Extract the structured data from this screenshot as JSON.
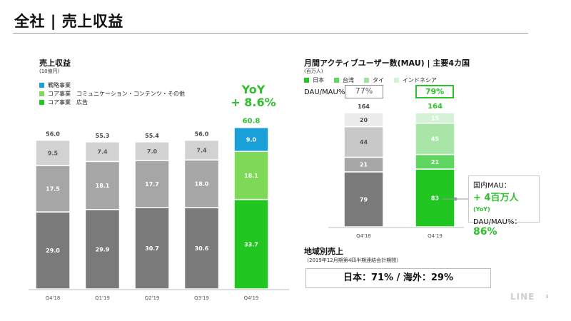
{
  "header": {
    "title": "全社 | 売上収益"
  },
  "left_chart": {
    "title": "売上収益",
    "unit": "(10億円)",
    "legend": [
      {
        "label": "戦略事業",
        "color": "#1aa0d8"
      },
      {
        "label": "コア事業　コミュニケーション・コンテンツ・その他",
        "color": "#7ed957"
      },
      {
        "label": "コア事業　広告",
        "color": "#21c621"
      }
    ],
    "yoy_line1": "YoY",
    "yoy_line2": "+ 8.6%"
  },
  "right_chart": {
    "title": "月間アクティブユーザー数(MAU) | 主要4カ国",
    "unit": "(百万人)",
    "legend": [
      {
        "label": "日本",
        "color": "#21c621"
      },
      {
        "label": "台湾",
        "color": "#5fd65f"
      },
      {
        "label": "タイ",
        "color": "#9fe39f"
      },
      {
        "label": "インドネシア",
        "color": "#d6f2d6"
      }
    ],
    "dau_label": "DAU/MAU%",
    "dau_values": [
      "77%",
      "79%"
    ],
    "callout": {
      "line1": "国内MAU：",
      "line2": "+ 4百万人",
      "line2_suffix": "(YoY)",
      "line3": "DAU/MAU%：",
      "line4": "86%"
    }
  },
  "region": {
    "title": "地域別売上",
    "subtitle": "（2019年12月期第4四半期連結会計期間）",
    "value": "日本：71% / 海外：29%"
  },
  "footer": {
    "logo": "LINE",
    "page": "3"
  },
  "chart_data": [
    {
      "type": "bar",
      "stacked": true,
      "title": "売上収益",
      "ylabel": "(10億円)",
      "categories": [
        "Q4'18",
        "Q1'19",
        "Q2'19",
        "Q3'19",
        "Q4'19"
      ],
      "totals": [
        "56.0",
        "55.3",
        "55.4",
        "56.0",
        "60.8"
      ],
      "series": [
        {
          "name": "コア事業　広告",
          "values": [
            29.0,
            29.9,
            30.7,
            30.6,
            33.7
          ],
          "labels": [
            "29.0",
            "29.9",
            "30.7",
            "30.6",
            "33.7"
          ],
          "colors": [
            "#7a7a7a",
            "#7a7a7a",
            "#7a7a7a",
            "#7a7a7a",
            "#21c621"
          ]
        },
        {
          "name": "コア事業　コミュニケーション・コンテンツ・その他",
          "values": [
            17.5,
            18.1,
            17.7,
            18.0,
            18.1
          ],
          "labels": [
            "17.5",
            "18.1",
            "17.7",
            "18.0",
            "18.1"
          ],
          "colors": [
            "#a6a6a6",
            "#a6a6a6",
            "#a6a6a6",
            "#a6a6a6",
            "#7ed957"
          ]
        },
        {
          "name": "戦略事業",
          "values": [
            9.5,
            7.4,
            7.0,
            7.4,
            9.0
          ],
          "labels": [
            "9.5",
            "7.4",
            "7.0",
            "7.4",
            "9.0"
          ],
          "colors": [
            "#d2d2d2",
            "#d2d2d2",
            "#d2d2d2",
            "#d2d2d2",
            "#1aa0d8"
          ]
        }
      ],
      "ylim": [
        0,
        61
      ]
    },
    {
      "type": "bar",
      "stacked": true,
      "title": "月間アクティブユーザー数(MAU) | 主要4カ国",
      "ylabel": "(百万人)",
      "categories": [
        "Q4'18",
        "Q4'19"
      ],
      "totals": [
        "164",
        "164"
      ],
      "series": [
        {
          "name": "日本",
          "values": [
            79,
            83
          ],
          "labels": [
            "79",
            "83"
          ],
          "colors": [
            "#7a7a7a",
            "#21c621"
          ]
        },
        {
          "name": "台湾",
          "values": [
            21,
            21
          ],
          "labels": [
            "21",
            "21"
          ],
          "colors": [
            "#a6a6a6",
            "#5fd65f"
          ]
        },
        {
          "name": "タイ",
          "values": [
            44,
            45
          ],
          "labels": [
            "44",
            "45"
          ],
          "colors": [
            "#c8c8c8",
            "#a8e6a8"
          ]
        },
        {
          "name": "インドネシア",
          "values": [
            20,
            15
          ],
          "labels": [
            "20",
            "15"
          ],
          "colors": [
            "#ececec",
            "#d6f2d6"
          ]
        }
      ],
      "ylim": [
        0,
        164
      ]
    }
  ]
}
